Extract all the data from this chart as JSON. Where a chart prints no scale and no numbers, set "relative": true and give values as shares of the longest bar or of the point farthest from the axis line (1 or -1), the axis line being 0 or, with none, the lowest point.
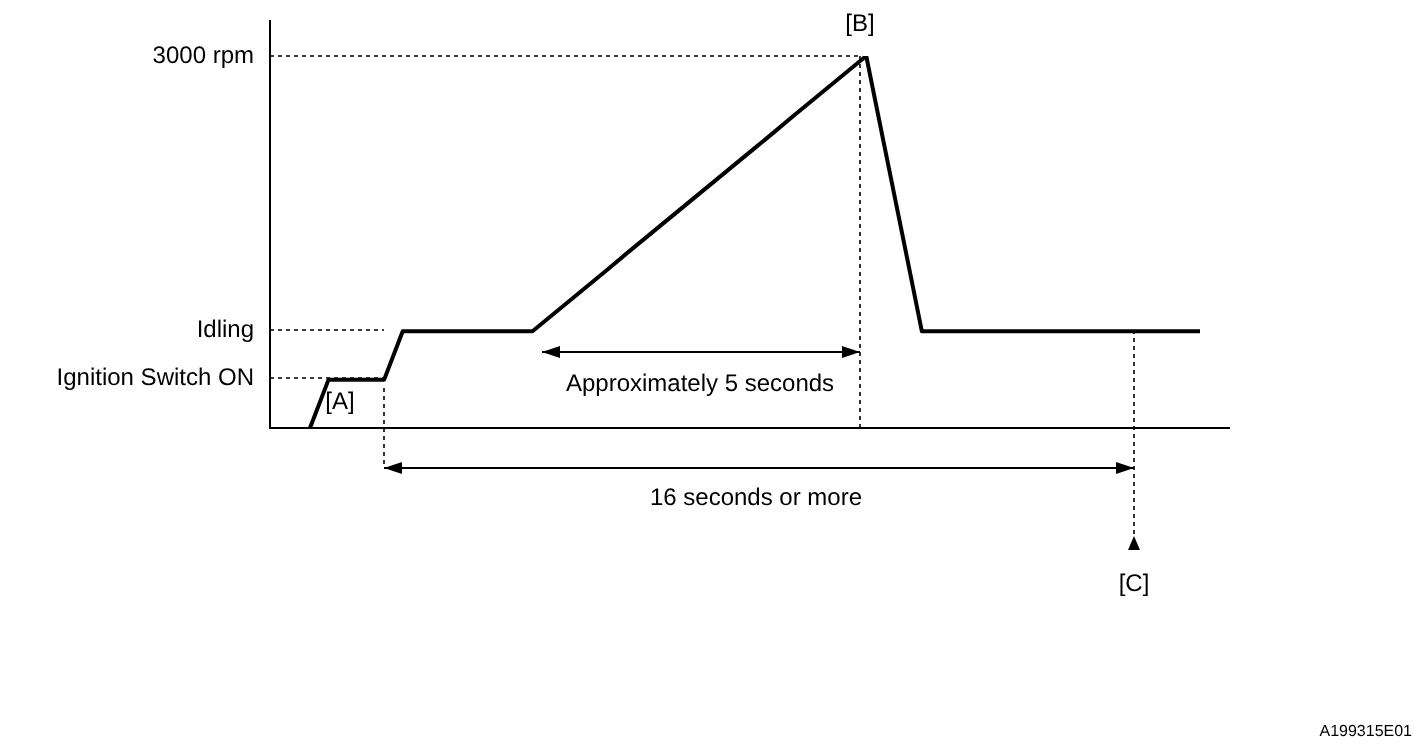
{
  "chart_data": {
    "type": "line",
    "relative": true,
    "categories": [
      null,
      null,
      null,
      null,
      null,
      null,
      null,
      null,
      null,
      null,
      null,
      null,
      null,
      null,
      null,
      null,
      null,
      null,
      null,
      null,
      null,
      null,
      null,
      null,
      null,
      null,
      null,
      null,
      null,
      null,
      null,
      null,
      null,
      null,
      null,
      null,
      null,
      null,
      null,
      null,
      null,
      null,
      null,
      null,
      null,
      null,
      null,
      null,
      null
    ],
    "series": [
      {
        "color": "#000000",
        "values": [
          0,
          0.13,
          0.13,
          0.13,
          0.13,
          0.26,
          0.26,
          0.26,
          0.26,
          0.26,
          0.26,
          0.26,
          0.26,
          0.301,
          0.342,
          0.383,
          0.424,
          0.466,
          0.507,
          0.548,
          0.589,
          0.63,
          0.671,
          0.712,
          0.753,
          0.794,
          0.836,
          0.877,
          0.918,
          0.959,
          1,
          0.753,
          0.507,
          0.26,
          0.26,
          0.26,
          0.26,
          0.26,
          0.26,
          0.26,
          0.26,
          0.26,
          0.26,
          0.26,
          0.26,
          0.26,
          0.26,
          0.26,
          0.26
        ]
      }
    ],
    "annotations": [
      "3000 rpm",
      "Idling",
      "Ignition Switch ON",
      "[A]",
      "[B]",
      "Approximately 5 seconds",
      "16 seconds or more",
      "[C]",
      "A199315E01"
    ]
  }
}
